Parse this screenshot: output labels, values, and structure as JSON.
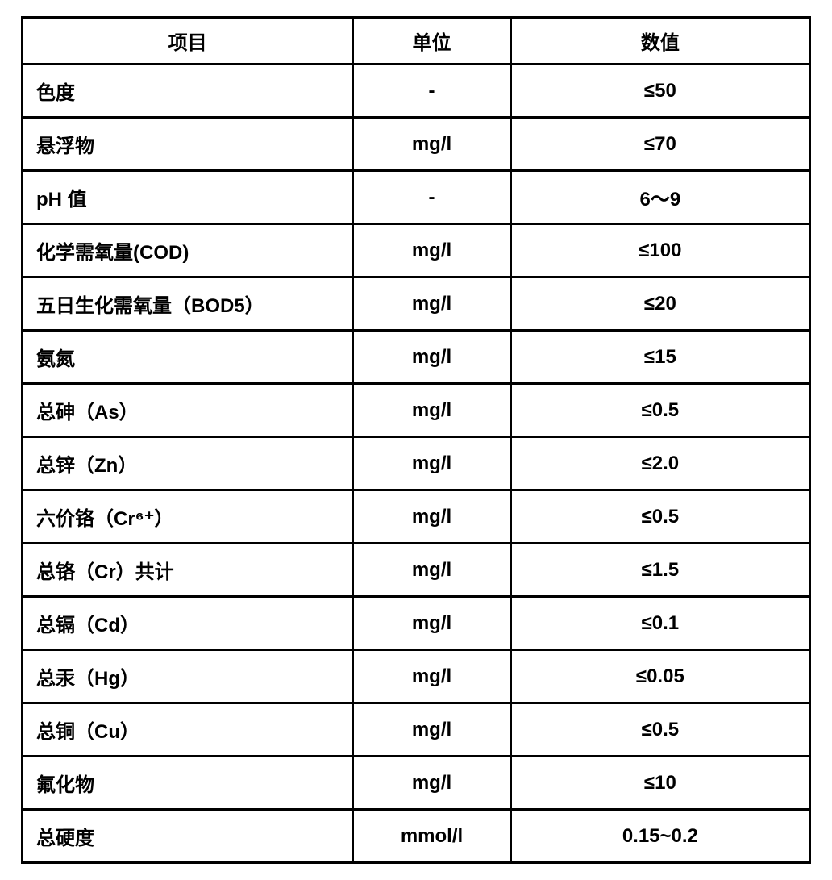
{
  "table": {
    "columns": [
      "项目",
      "单位",
      "数值"
    ],
    "rows": [
      {
        "item": "色度",
        "unit": "-",
        "value": "≤50"
      },
      {
        "item": "悬浮物",
        "unit": "mg/l",
        "value": "≤70"
      },
      {
        "item": "pH 值",
        "unit": "-",
        "value": "6～9"
      },
      {
        "item": "化学需氧量(COD)",
        "unit": "mg/l",
        "value": "≤100"
      },
      {
        "item": "五日生化需氧量（BOD5）",
        "unit": "mg/l",
        "value": "≤20"
      },
      {
        "item": "氨氮",
        "unit": "mg/l",
        "value": "≤15"
      },
      {
        "item": "总砷（As）",
        "unit": "mg/l",
        "value": "≤0.5"
      },
      {
        "item": "总锌（Zn）",
        "unit": "mg/l",
        "value": "≤2.0"
      },
      {
        "item": "六价铬（Cr⁶⁺）",
        "unit": "mg/l",
        "value": "≤0.5"
      },
      {
        "item": "总铬（Cr）共计",
        "unit": "mg/l",
        "value": "≤1.5"
      },
      {
        "item": "总镉（Cd）",
        "unit": "mg/l",
        "value": "≤0.1"
      },
      {
        "item": "总汞（Hg）",
        "unit": "mg/l",
        "value": "≤0.05"
      },
      {
        "item": "总铜（Cu）",
        "unit": "mg/l",
        "value": "≤0.5"
      },
      {
        "item": "氟化物",
        "unit": "mg/l",
        "value": "≤10"
      },
      {
        "item": "总硬度",
        "unit": "mmol/l",
        "value": "0.15~0.2"
      }
    ],
    "border_color": "#000000",
    "background_color": "#ffffff",
    "text_color": "#000000",
    "font_size": 24,
    "font_weight": "bold",
    "col_widths_pct": [
      42,
      20,
      38
    ],
    "col_align": [
      "left",
      "center",
      "center"
    ]
  }
}
